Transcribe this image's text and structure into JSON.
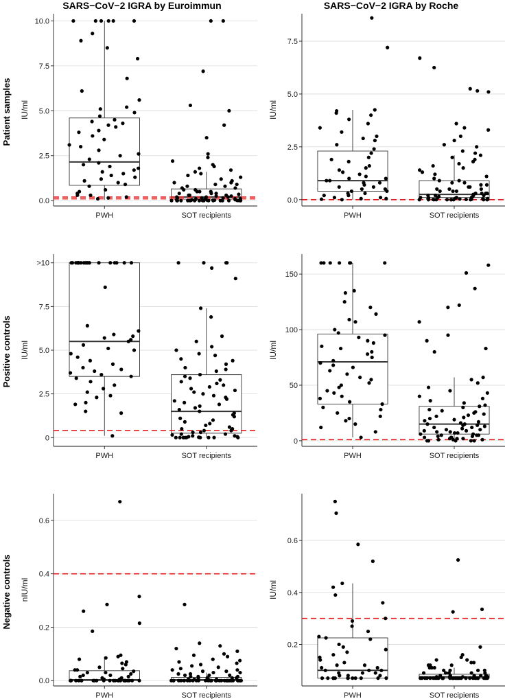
{
  "column_titles": [
    "SARS−CoV−2 IGRA by Euroimmun",
    "SARS−CoV−2 IGRA by Roche"
  ],
  "row_titles": [
    "Patient samples",
    "Positive controls",
    "Negative controls"
  ],
  "chart_data": [
    {
      "type": "box",
      "title": "SARS−CoV−2 IGRA by Euroimmun",
      "row": "Patient samples",
      "ylabel": "IU/ml",
      "ylim": [
        -0.3,
        10.4
      ],
      "yticks": [
        0,
        2.5,
        5,
        7.5,
        10
      ],
      "ytick_labels": [
        "0.0",
        "2.5",
        "5.0",
        "7.5",
        "10.0"
      ],
      "categories": [
        "PWH",
        "SOT recipients"
      ],
      "thresholds": [
        0.1,
        0.2
      ],
      "groups": [
        {
          "name": "PWH",
          "q1": 0.85,
          "median": 2.15,
          "q3": 4.6,
          "whisker_low": 0.05,
          "whisker_high": 10.0,
          "points": [
            10,
            10,
            10,
            10,
            10,
            10,
            8.9,
            9.3,
            8.5,
            7.9,
            6.8,
            6.1,
            5.6,
            5.2,
            5.1,
            4.9,
            4.7,
            4.5,
            4.4,
            4.3,
            4.2,
            4.1,
            3.9,
            3.8,
            3.6,
            3.4,
            3.1,
            3.0,
            2.8,
            2.6,
            2.5,
            2.3,
            2.1,
            2.0,
            1.9,
            1.8,
            1.7,
            1.6,
            1.5,
            1.4,
            1.3,
            1.2,
            1.1,
            1.0,
            0.9,
            0.8,
            0.6,
            0.5,
            0.4,
            0.3,
            0.3,
            0.2,
            0.15,
            0.1
          ]
        },
        {
          "name": "SOT recipients",
          "q1": 0.08,
          "median": 0.2,
          "q3": 0.65,
          "whisker_low": 0.0,
          "whisker_high": 1.6,
          "points": [
            10,
            10,
            7.2,
            5.3,
            5.0,
            4.2,
            3.5,
            2.6,
            2.4,
            2.2,
            2.0,
            1.9,
            1.8,
            1.7,
            1.6,
            1.5,
            1.4,
            1.3,
            1.2,
            1.1,
            1.0,
            1.0,
            0.9,
            0.9,
            0.8,
            0.8,
            0.7,
            0.7,
            0.6,
            0.6,
            0.5,
            0.5,
            0.5,
            0.4,
            0.4,
            0.4,
            0.35,
            0.3,
            0.3,
            0.3,
            0.25,
            0.25,
            0.2,
            0.2,
            0.2,
            0.15,
            0.15,
            0.15,
            0.1,
            0.1,
            0.1,
            0.1,
            0.08,
            0.06,
            0.05,
            0.05,
            0.04,
            0.03,
            0.03,
            0.02,
            0.02,
            0.01,
            0.01,
            0,
            0,
            0,
            0,
            0,
            0,
            0,
            0,
            0,
            0,
            0,
            0,
            0,
            0,
            0,
            0,
            0
          ]
        }
      ]
    },
    {
      "type": "box",
      "title": "SARS−CoV−2 IGRA by Roche",
      "row": "Patient samples",
      "ylabel": "IU/ml",
      "ylim": [
        -0.3,
        8.8
      ],
      "yticks": [
        0,
        2.5,
        5,
        7.5
      ],
      "ytick_labels": [
        "0.0",
        "2.5",
        "5.0",
        "7.5"
      ],
      "categories": [
        "PWH",
        "SOT recipients"
      ],
      "thresholds": [
        0.0
      ],
      "groups": [
        {
          "name": "PWH",
          "q1": 0.4,
          "median": 0.9,
          "q3": 2.3,
          "whisker_low": 0.0,
          "whisker_high": 4.25,
          "points": [
            8.6,
            7.2,
            4.25,
            4.2,
            4.1,
            4.0,
            3.8,
            3.6,
            3.4,
            3.2,
            3.0,
            2.9,
            2.8,
            2.6,
            2.4,
            2.2,
            2.0,
            1.9,
            1.8,
            1.6,
            1.5,
            1.4,
            1.3,
            1.2,
            1.1,
            1.0,
            1.0,
            0.9,
            0.9,
            0.8,
            0.8,
            0.7,
            0.6,
            0.6,
            0.5,
            0.5,
            0.4,
            0.4,
            0.3,
            0.3,
            0.2,
            0.2,
            0.1,
            0.1,
            0.05,
            0.05,
            0.02,
            0
          ]
        },
        {
          "name": "SOT recipients",
          "q1": 0.1,
          "median": 0.25,
          "q3": 0.9,
          "whisker_low": 0.0,
          "whisker_high": 2.1,
          "points": [
            6.7,
            6.25,
            5.25,
            5.15,
            5.1,
            3.6,
            3.4,
            3.3,
            3.0,
            2.8,
            2.6,
            2.5,
            2.3,
            2.2,
            2.1,
            2.0,
            1.9,
            1.8,
            1.7,
            1.6,
            1.5,
            1.4,
            1.3,
            1.2,
            1.1,
            1.0,
            0.9,
            0.9,
            0.8,
            0.8,
            0.7,
            0.7,
            0.6,
            0.6,
            0.5,
            0.5,
            0.5,
            0.4,
            0.4,
            0.4,
            0.3,
            0.3,
            0.3,
            0.3,
            0.25,
            0.2,
            0.2,
            0.2,
            0.2,
            0.15,
            0.15,
            0.1,
            0.1,
            0.1,
            0.1,
            0.08,
            0.06,
            0.05,
            0.05,
            0.04,
            0.03,
            0.02,
            0.02,
            0.01,
            0.01,
            0,
            0,
            0,
            0,
            0,
            0,
            0,
            0,
            0,
            0,
            0
          ]
        }
      ]
    },
    {
      "type": "box",
      "title": "SARS−CoV−2 IGRA by Euroimmun",
      "row": "Positive controls",
      "ylabel": "IU/ml",
      "ylim": [
        -0.5,
        10.5
      ],
      "yticks": [
        0,
        2.5,
        5,
        7.5,
        10
      ],
      "ytick_labels": [
        "0",
        "2.5",
        "5.0",
        "7.5",
        ">10"
      ],
      "categories": [
        "PWH",
        "SOT recipients"
      ],
      "thresholds": [
        0.4
      ],
      "groups": [
        {
          "name": "PWH",
          "q1": 3.5,
          "median": 5.5,
          "q3": 10.0,
          "whisker_low": 0.1,
          "whisker_high": 10.0,
          "points": [
            10,
            10,
            10,
            10,
            10,
            10,
            10,
            10,
            10,
            10,
            10,
            10,
            10,
            10,
            10,
            10,
            10,
            10,
            10,
            10,
            8.6,
            6.4,
            6.1,
            5.9,
            5.8,
            5.7,
            5.6,
            5.5,
            5.3,
            5.1,
            5.0,
            4.8,
            4.6,
            4.4,
            4.2,
            4.0,
            3.9,
            3.8,
            3.7,
            3.6,
            3.5,
            3.4,
            3.2,
            3.0,
            2.8,
            2.6,
            2.4,
            2.3,
            2.0,
            1.9,
            1.5,
            1.4,
            0.1
          ]
        },
        {
          "name": "SOT recipients",
          "q1": 0.25,
          "median": 1.5,
          "q3": 3.6,
          "whisker_low": 0.0,
          "whisker_high": 7.4,
          "points": [
            10,
            10,
            10,
            10,
            9.7,
            9.1,
            7.4,
            6.9,
            5.8,
            5.5,
            5.2,
            5.0,
            4.8,
            4.7,
            4.5,
            4.4,
            4.2,
            4.0,
            3.9,
            3.8,
            3.6,
            3.5,
            3.4,
            3.3,
            3.2,
            3.1,
            3.0,
            2.9,
            2.8,
            2.7,
            2.6,
            2.5,
            2.4,
            2.3,
            2.2,
            2.1,
            2.0,
            1.9,
            1.8,
            1.7,
            1.6,
            1.5,
            1.4,
            1.3,
            1.2,
            1.1,
            1.0,
            0.9,
            0.8,
            0.7,
            0.6,
            0.5,
            0.5,
            0.4,
            0.4,
            0.3,
            0.3,
            0.2,
            0.2,
            0.15,
            0.1,
            0.1,
            0.05,
            0.05,
            0.02,
            0,
            0,
            0,
            0,
            0,
            0,
            0,
            0,
            0,
            0
          ]
        }
      ]
    },
    {
      "type": "box",
      "title": "SARS−CoV−2 IGRA by Roche",
      "row": "Positive controls",
      "ylabel": "IU/ml",
      "ylim": [
        -5,
        168
      ],
      "yticks": [
        0,
        50,
        100,
        150
      ],
      "ytick_labels": [
        "0",
        "50",
        "100",
        "150"
      ],
      "categories": [
        "PWH",
        "SOT recipients"
      ],
      "thresholds": [
        1
      ],
      "groups": [
        {
          "name": "PWH",
          "q1": 33,
          "median": 71,
          "q3": 96,
          "whisker_low": 3,
          "whisker_high": 160,
          "points": [
            160,
            160,
            160,
            160,
            160,
            160,
            160,
            135,
            133,
            125,
            120,
            114,
            109,
            107,
            100,
            97,
            95,
            93,
            90,
            88,
            85,
            83,
            80,
            78,
            75,
            72,
            70,
            68,
            66,
            63,
            60,
            57,
            55,
            52,
            50,
            48,
            45,
            43,
            40,
            38,
            35,
            33,
            30,
            28,
            25,
            22,
            20,
            18,
            15,
            12,
            8,
            3
          ]
        },
        {
          "name": "SOT recipients",
          "q1": 6,
          "median": 15,
          "q3": 31,
          "whisker_low": 0,
          "whisker_high": 57,
          "points": [
            158,
            151,
            137,
            122,
            120,
            107,
            95,
            90,
            83,
            80,
            57,
            55,
            52,
            48,
            45,
            43,
            40,
            38,
            36,
            34,
            32,
            31,
            30,
            28,
            27,
            26,
            25,
            24,
            23,
            22,
            21,
            20,
            19,
            18,
            17,
            16,
            15,
            15,
            14,
            14,
            13,
            12,
            12,
            11,
            10,
            10,
            9,
            9,
            8,
            8,
            7,
            7,
            6,
            6,
            5,
            5,
            5,
            4,
            4,
            3,
            3,
            3,
            2,
            2,
            2,
            1,
            1,
            1,
            0,
            0,
            0,
            0,
            0
          ]
        }
      ]
    },
    {
      "type": "box",
      "title": "SARS−CoV−2 IGRA by Euroimmun",
      "row": "Negative controls",
      "ylabel": "nIU/ml",
      "ylim": [
        -0.02,
        0.7
      ],
      "yticks": [
        0,
        0.2,
        0.4,
        0.6
      ],
      "ytick_labels": [
        "0.0",
        "0.2",
        "0.4",
        "0.6"
      ],
      "categories": [
        "PWH",
        "SOT recipients"
      ],
      "thresholds": [
        0.4
      ],
      "groups": [
        {
          "name": "PWH",
          "q1": 0.0,
          "median": 0.003,
          "q3": 0.037,
          "whisker_low": 0.0,
          "whisker_high": 0.09,
          "points": [
            0.67,
            0.315,
            0.285,
            0.26,
            0.215,
            0.185,
            0.095,
            0.09,
            0.085,
            0.08,
            0.07,
            0.065,
            0.06,
            0.05,
            0.045,
            0.04,
            0.04,
            0.035,
            0.03,
            0.03,
            0.025,
            0.02,
            0.02,
            0.015,
            0.015,
            0.01,
            0.01,
            0.005,
            0.005,
            0,
            0,
            0,
            0,
            0,
            0,
            0,
            0,
            0,
            0,
            0,
            0,
            0,
            0,
            0,
            0,
            0,
            0,
            0,
            0,
            0,
            0,
            0,
            0
          ]
        },
        {
          "name": "SOT recipients",
          "q1": 0.0,
          "median": 0.003,
          "q3": 0.012,
          "whisker_low": 0.0,
          "whisker_high": 0.03,
          "points": [
            0.285,
            0.14,
            0.13,
            0.12,
            0.11,
            0.1,
            0.095,
            0.09,
            0.08,
            0.075,
            0.07,
            0.065,
            0.06,
            0.055,
            0.05,
            0.045,
            0.04,
            0.04,
            0.035,
            0.035,
            0.03,
            0.03,
            0.025,
            0.025,
            0.02,
            0.02,
            0.02,
            0.015,
            0.015,
            0.015,
            0.01,
            0.01,
            0.01,
            0.01,
            0.005,
            0.005,
            0.005,
            0.005,
            0,
            0,
            0,
            0,
            0,
            0,
            0,
            0,
            0,
            0,
            0,
            0,
            0,
            0,
            0,
            0,
            0,
            0,
            0,
            0,
            0,
            0,
            0,
            0,
            0,
            0,
            0,
            0,
            0,
            0,
            0,
            0,
            0,
            0,
            0,
            0,
            0
          ]
        }
      ]
    },
    {
      "type": "box",
      "title": "SARS−CoV−2 IGRA by Roche",
      "row": "Negative controls",
      "ylabel": "IU/ml",
      "ylim": [
        0.04,
        0.78
      ],
      "yticks": [
        0.2,
        0.4,
        0.6
      ],
      "ytick_labels": [
        "0.2",
        "0.4",
        "0.6"
      ],
      "categories": [
        "PWH",
        "SOT recipients"
      ],
      "thresholds": [
        0.3
      ],
      "groups": [
        {
          "name": "PWH",
          "q1": 0.07,
          "median": 0.1,
          "q3": 0.225,
          "whisker_low": 0.07,
          "whisker_high": 0.435,
          "points": [
            0.75,
            0.705,
            0.585,
            0.52,
            0.435,
            0.42,
            0.39,
            0.36,
            0.3,
            0.29,
            0.27,
            0.25,
            0.23,
            0.225,
            0.22,
            0.2,
            0.19,
            0.18,
            0.17,
            0.16,
            0.15,
            0.14,
            0.13,
            0.12,
            0.12,
            0.11,
            0.11,
            0.1,
            0.1,
            0.1,
            0.09,
            0.09,
            0.09,
            0.08,
            0.08,
            0.08,
            0.07,
            0.07,
            0.07,
            0.07,
            0.07,
            0.07,
            0.07,
            0.07,
            0.07,
            0.07,
            0.07,
            0.07
          ]
        },
        {
          "name": "SOT recipients",
          "q1": 0.07,
          "median": 0.075,
          "q3": 0.085,
          "whisker_low": 0.07,
          "whisker_high": 0.11,
          "points": [
            0.525,
            0.335,
            0.325,
            0.19,
            0.16,
            0.15,
            0.14,
            0.14,
            0.13,
            0.13,
            0.12,
            0.12,
            0.12,
            0.11,
            0.11,
            0.11,
            0.1,
            0.1,
            0.1,
            0.1,
            0.09,
            0.09,
            0.09,
            0.09,
            0.09,
            0.08,
            0.08,
            0.08,
            0.08,
            0.08,
            0.08,
            0.075,
            0.075,
            0.075,
            0.075,
            0.07,
            0.07,
            0.07,
            0.07,
            0.07,
            0.07,
            0.07,
            0.07,
            0.07,
            0.07,
            0.07,
            0.07,
            0.07,
            0.07,
            0.07,
            0.07,
            0.07,
            0.07,
            0.07,
            0.07,
            0.07,
            0.07,
            0.07,
            0.07,
            0.07,
            0.07,
            0.07,
            0.07,
            0.07,
            0.07,
            0.07,
            0.07,
            0.07,
            0.07,
            0.07
          ]
        }
      ]
    }
  ]
}
